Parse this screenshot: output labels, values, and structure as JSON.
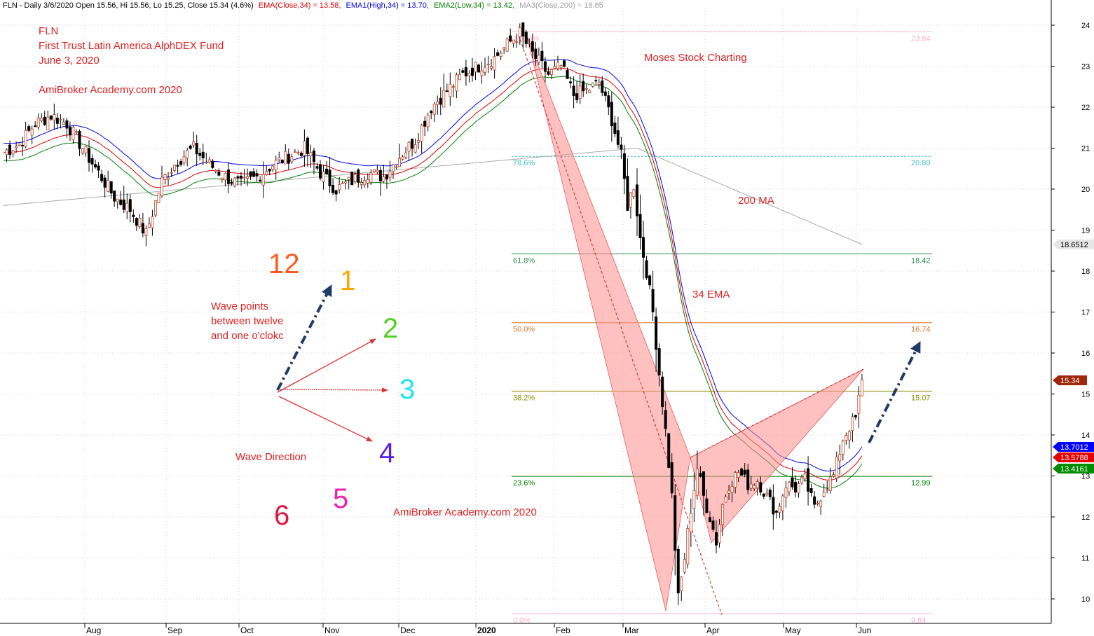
{
  "header": {
    "symbol_info": "FLN - Daily 3/6/2020 Open 15.56, Hi 15.56, Lo 15.25, Close 15.34 (4.6%)",
    "ema": "EMA(Close,34) = 13.58,",
    "ema1": "EMA1(High,34) = 13.70,",
    "ema2": "EMA2(Low,34) = 13.42,",
    "ma3": "MA3(Close,200) = 18.65"
  },
  "annotations": {
    "ticker": "FLN",
    "fund_name": "First Trust Latin America AlphDEX Fund",
    "date": "June 3, 2020",
    "site_top": "AmiBroker Academy.com  2020",
    "site_bottom": "AmiBroker Academy.com 2020",
    "moses": "Moses Stock Charting",
    "ma200": "200 MA",
    "ema34": "34 EMA",
    "wave_points_1": "Wave points",
    "wave_points_2": "between twelve",
    "wave_points_3": "and one o'clokc",
    "wave_direction": "Wave Direction"
  },
  "clock": [
    {
      "label": "12",
      "color": "#ff5a1e"
    },
    {
      "label": "1",
      "color": "#ffa500"
    },
    {
      "label": "2",
      "color": "#4fd31e"
    },
    {
      "label": "3",
      "color": "#1ee6f0"
    },
    {
      "label": "4",
      "color": "#5a1ee6"
    },
    {
      "label": "5",
      "color": "#f01eb4"
    },
    {
      "label": "6",
      "color": "#e6143c"
    }
  ],
  "fib_levels": [
    {
      "pct": "0.0%",
      "value": "9.64",
      "color": "#ffb0c8"
    },
    {
      "pct": "23.6%",
      "value": "12.99",
      "color": "#008000"
    },
    {
      "pct": "38.2%",
      "value": "15.07",
      "color": "#8b8b00"
    },
    {
      "pct": "50.0%",
      "value": "16.74",
      "color": "#e07020"
    },
    {
      "pct": "61.8%",
      "value": "18.42",
      "color": "#2e8b57"
    },
    {
      "pct": "78.6%",
      "value": "20.80",
      "color": "#40c0c0"
    },
    {
      "pct": "100.0%",
      "value": "23.84",
      "color": "#ffb0c8"
    }
  ],
  "price_tags": [
    {
      "text": "18.6512",
      "bg": "#e6e6e6",
      "fg": "#000000"
    },
    {
      "text": "15.34",
      "bg": "#a0280a",
      "fg": "#ffffff"
    },
    {
      "text": "13.7012",
      "bg": "#0000ff",
      "fg": "#ffffff"
    },
    {
      "text": "13.5788",
      "bg": "#e60000",
      "fg": "#ffffff"
    },
    {
      "text": "13.4161",
      "bg": "#008c00",
      "fg": "#ffffff"
    }
  ],
  "chart_data": {
    "type": "candlestick",
    "yaxis_ticks": [
      "24",
      "23",
      "22",
      "21",
      "20",
      "19",
      "18",
      "17",
      "16",
      "15",
      "14",
      "13",
      "12",
      "11",
      "10"
    ],
    "xaxis_ticks": [
      "Aug",
      "Sep",
      "Oct",
      "Nov",
      "Dec",
      "2020",
      "Feb",
      "Mar",
      "Apr",
      "May",
      "Jun"
    ],
    "ylim": [
      9.5,
      24.2
    ],
    "grid": true,
    "series": [
      {
        "name": "EMA(Close,34)",
        "color": "#e00000"
      },
      {
        "name": "EMA1(High,34)",
        "color": "#0000e0"
      },
      {
        "name": "EMA2(Low,34)",
        "color": "#008000"
      },
      {
        "name": "MA3(Close,200)",
        "color": "#a8a8a8"
      }
    ],
    "anchors": [
      {
        "day": 0,
        "price": 20.9
      },
      {
        "day": 5,
        "price": 21.1
      },
      {
        "day": 10,
        "price": 21.6
      },
      {
        "day": 15,
        "price": 21.8
      },
      {
        "day": 20,
        "price": 21.6
      },
      {
        "day": 25,
        "price": 21.0
      },
      {
        "day": 30,
        "price": 20.4
      },
      {
        "day": 35,
        "price": 19.8
      },
      {
        "day": 40,
        "price": 19.5
      },
      {
        "day": 45,
        "price": 18.9
      },
      {
        "day": 50,
        "price": 20.2
      },
      {
        "day": 55,
        "price": 20.7
      },
      {
        "day": 60,
        "price": 21.0
      },
      {
        "day": 65,
        "price": 20.6
      },
      {
        "day": 70,
        "price": 20.3
      },
      {
        "day": 75,
        "price": 20.1
      },
      {
        "day": 80,
        "price": 20.3
      },
      {
        "day": 85,
        "price": 20.6
      },
      {
        "day": 90,
        "price": 20.8
      },
      {
        "day": 95,
        "price": 21.0
      },
      {
        "day": 100,
        "price": 20.4
      },
      {
        "day": 105,
        "price": 20.0
      },
      {
        "day": 110,
        "price": 20.2
      },
      {
        "day": 115,
        "price": 20.4
      },
      {
        "day": 120,
        "price": 20.3
      },
      {
        "day": 125,
        "price": 20.8
      },
      {
        "day": 130,
        "price": 21.2
      },
      {
        "day": 135,
        "price": 22.0
      },
      {
        "day": 140,
        "price": 22.4
      },
      {
        "day": 145,
        "price": 22.8
      },
      {
        "day": 150,
        "price": 23.0
      },
      {
        "day": 155,
        "price": 23.2
      },
      {
        "day": 160,
        "price": 23.6
      },
      {
        "day": 163,
        "price": 23.8
      },
      {
        "day": 167,
        "price": 23.3
      },
      {
        "day": 172,
        "price": 22.8
      },
      {
        "day": 176,
        "price": 23.0
      },
      {
        "day": 180,
        "price": 22.3
      },
      {
        "day": 184,
        "price": 22.4
      },
      {
        "day": 188,
        "price": 22.6
      },
      {
        "day": 192,
        "price": 21.7
      },
      {
        "day": 195,
        "price": 20.8
      },
      {
        "day": 197,
        "price": 19.6
      },
      {
        "day": 199,
        "price": 20.1
      },
      {
        "day": 201,
        "price": 18.8
      },
      {
        "day": 203,
        "price": 18.0
      },
      {
        "day": 205,
        "price": 17.0
      },
      {
        "day": 207,
        "price": 15.5
      },
      {
        "day": 209,
        "price": 14.1
      },
      {
        "day": 211,
        "price": 12.5
      },
      {
        "day": 213,
        "price": 10.0
      },
      {
        "day": 215,
        "price": 11.0
      },
      {
        "day": 217,
        "price": 12.2
      },
      {
        "day": 219,
        "price": 13.2
      },
      {
        "day": 221,
        "price": 12.5
      },
      {
        "day": 223,
        "price": 12.0
      },
      {
        "day": 225,
        "price": 11.4
      },
      {
        "day": 227,
        "price": 12.3
      },
      {
        "day": 229,
        "price": 12.8
      },
      {
        "day": 232,
        "price": 13.1
      },
      {
        "day": 235,
        "price": 12.8
      },
      {
        "day": 238,
        "price": 12.9
      },
      {
        "day": 241,
        "price": 12.5
      },
      {
        "day": 244,
        "price": 12.1
      },
      {
        "day": 247,
        "price": 12.8
      },
      {
        "day": 250,
        "price": 12.7
      },
      {
        "day": 253,
        "price": 12.9
      },
      {
        "day": 256,
        "price": 12.2
      },
      {
        "day": 259,
        "price": 12.7
      },
      {
        "day": 262,
        "price": 13.0
      },
      {
        "day": 265,
        "price": 13.9
      },
      {
        "day": 267,
        "price": 14.2
      },
      {
        "day": 269,
        "price": 14.4
      },
      {
        "day": 271,
        "price": 15.34
      }
    ]
  }
}
